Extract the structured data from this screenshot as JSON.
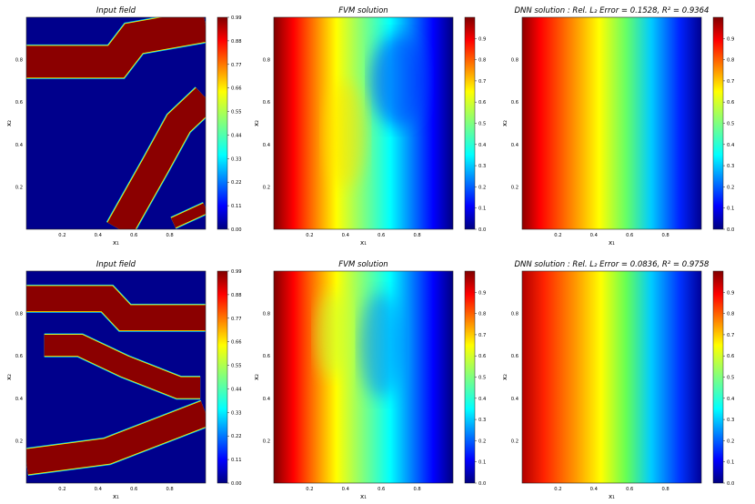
{
  "figure": {
    "rows": [
      {
        "panels": [
          {
            "kind": "input",
            "title": "Input field",
            "colorbar_ticks": [
              "0.99",
              "0.88",
              "0.77",
              "0.66",
              "0.55",
              "0.44",
              "0.33",
              "0.22",
              "0.11",
              "0.00"
            ]
          },
          {
            "kind": "fvm",
            "title": "FVM solution",
            "colorbar_ticks": [
              "0.9",
              "0.8",
              "0.7",
              "0.6",
              "0.5",
              "0.4",
              "0.3",
              "0.2",
              "0.1",
              "0.0"
            ]
          },
          {
            "kind": "dnn",
            "title": "DNN solution :  Rel. L₂ Error = 0.1528, R² = 0.9364",
            "colorbar_ticks": [
              "0.9",
              "0.8",
              "0.7",
              "0.6",
              "0.5",
              "0.4",
              "0.3",
              "0.2",
              "0.1",
              "0.0"
            ]
          }
        ]
      },
      {
        "panels": [
          {
            "kind": "input",
            "title": "Input field",
            "colorbar_ticks": [
              "0.99",
              "0.88",
              "0.77",
              "0.66",
              "0.55",
              "0.44",
              "0.33",
              "0.22",
              "0.11",
              "0.00"
            ]
          },
          {
            "kind": "fvm",
            "title": "FVM solution",
            "colorbar_ticks": [
              "0.9",
              "0.8",
              "0.7",
              "0.6",
              "0.5",
              "0.4",
              "0.3",
              "0.2",
              "0.1",
              "0.0"
            ]
          },
          {
            "kind": "dnn",
            "title": "DNN solution :  Rel. L₂ Error = 0.0836, R² = 0.9758",
            "colorbar_ticks": [
              "0.9",
              "0.8",
              "0.7",
              "0.6",
              "0.5",
              "0.4",
              "0.3",
              "0.2",
              "0.1",
              "0.0"
            ]
          }
        ]
      }
    ],
    "xlabel": "x₁",
    "ylabel": "x₂",
    "x_ticks": [
      "0.2",
      "0.4",
      "0.6",
      "0.8"
    ],
    "y_ticks": [
      "0.8",
      "0.6",
      "0.4",
      "0.2"
    ]
  },
  "chart_data": [
    {
      "type": "heatmap",
      "title": "Input field",
      "colormap": "jet",
      "xlabel": "x₁",
      "ylabel": "x₂",
      "xlim": [
        0,
        1
      ],
      "ylim": [
        0,
        1
      ],
      "clim": [
        0,
        0.99
      ],
      "description_values": "binary field: 0.99 inside channels, 0.00 elsewhere",
      "channels": [
        {
          "polyline": [
            [
              0,
              0.79
            ],
            [
              0.1,
              0.79
            ],
            [
              0.5,
              0.79
            ],
            [
              0.6,
              0.9
            ],
            [
              1.0,
              0.96
            ]
          ],
          "width": 0.15
        },
        {
          "polyline": [
            [
              0.52,
              0.0
            ],
            [
              0.72,
              0.3
            ],
            [
              0.85,
              0.5
            ],
            [
              1.0,
              0.62
            ]
          ],
          "width": 0.13
        }
      ],
      "extra_strip": {
        "polyline": [
          [
            0.82,
            0.03
          ],
          [
            1.0,
            0.1
          ]
        ],
        "width": 0.05
      }
    },
    {
      "type": "heatmap",
      "title": "FVM solution",
      "colormap": "jet",
      "xlabel": "x₁",
      "ylabel": "x₂",
      "xlim": [
        0,
        1
      ],
      "ylim": [
        0,
        1
      ],
      "clim": [
        0,
        1
      ],
      "description_values": "decreases from 1.0 at x₁=0 to 0.0 at x₁=1; contours bend right near x₂≈0.7"
    },
    {
      "type": "heatmap",
      "title": "DNN solution",
      "colormap": "jet",
      "xlabel": "x₁",
      "ylabel": "x₂",
      "xlim": [
        0,
        1
      ],
      "ylim": [
        0,
        1
      ],
      "clim": [
        0,
        1
      ],
      "rel_l2_error": 0.1528,
      "r2": 0.9364
    },
    {
      "type": "heatmap",
      "title": "Input field",
      "colormap": "jet",
      "xlabel": "x₁",
      "ylabel": "x₂",
      "xlim": [
        0,
        1
      ],
      "ylim": [
        0,
        1
      ],
      "clim": [
        0,
        0.99
      ],
      "channels": [
        {
          "polyline": [
            [
              0,
              0.87
            ],
            [
              0.45,
              0.87
            ],
            [
              0.55,
              0.78
            ],
            [
              1.0,
              0.78
            ]
          ],
          "width": 0.12
        },
        {
          "polyline": [
            [
              0,
              0.1
            ],
            [
              0.45,
              0.15
            ],
            [
              1.0,
              0.33
            ]
          ],
          "width": 0.12
        },
        {
          "polyline": [
            [
              0.1,
              0.65
            ],
            [
              0.3,
              0.65
            ],
            [
              0.55,
              0.55
            ],
            [
              0.85,
              0.45
            ],
            [
              0.97,
              0.45
            ]
          ],
          "width": 0.1
        }
      ]
    },
    {
      "type": "heatmap",
      "title": "FVM solution",
      "colormap": "jet",
      "xlabel": "x₁",
      "ylabel": "x₂",
      "xlim": [
        0,
        1
      ],
      "ylim": [
        0,
        1
      ],
      "clim": [
        0,
        1
      ],
      "description_values": "decreases from 1.0 at x₁=0 to 0.0 at x₁=1; contours bend left near x₂≈0.7"
    },
    {
      "type": "heatmap",
      "title": "DNN solution",
      "colormap": "jet",
      "xlabel": "x₁",
      "ylabel": "x₂",
      "xlim": [
        0,
        1
      ],
      "ylim": [
        0,
        1
      ],
      "clim": [
        0,
        1
      ],
      "rel_l2_error": 0.0836,
      "r2": 0.9758
    }
  ]
}
